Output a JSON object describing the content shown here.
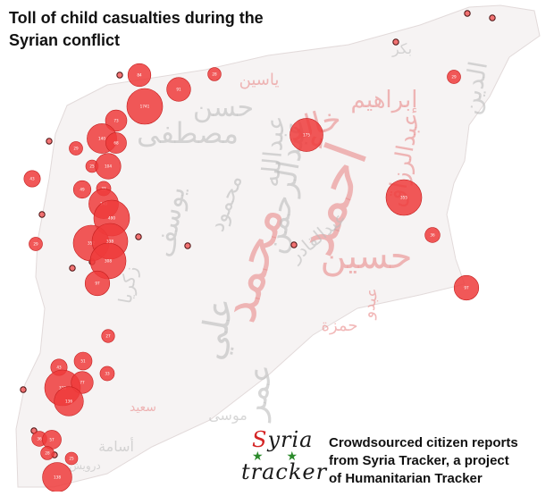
{
  "title_lines": [
    "Toll of child casualties during the",
    "Syrian conflict"
  ],
  "logo": {
    "word_top_first": "S",
    "word_top_rest": "yria",
    "word_bottom": "tracker",
    "stars": "★★"
  },
  "credit_lines": [
    "Crowdsourced citizen reports",
    "from Syria Tracker, a project",
    "of Humanitarian Tracker"
  ],
  "colors": {
    "bubble": "#ef3b3b",
    "bubble_edge": "#c41f1f",
    "cloud_red": "#e98a8a",
    "cloud_grey": "#bdbdbd"
  },
  "word_cloud": [
    "أحمد",
    "محمد",
    "علي",
    "حسين",
    "عبدالرحمن",
    "حسن",
    "مصطفى",
    "خالد",
    "عمر",
    "عبدالله",
    "يوسف",
    "إبراهيم",
    "عبدالرزاق",
    "الدين",
    "موسى",
    "حمزة",
    "زكريا",
    "عبدو",
    "سعيد",
    "ياسين",
    "محمود",
    "بكر",
    "أسامة",
    "درويش",
    "عبدالقادر"
  ],
  "bubbles": [
    {
      "label": "",
      "value": 0
    },
    {
      "label": "",
      "value": 0
    },
    {
      "label": "",
      "value": 0
    },
    {
      "label": "",
      "value": 0
    },
    {
      "label": "",
      "value": 0
    },
    {
      "label": "",
      "value": 0
    },
    {
      "label": "",
      "value": 0
    },
    {
      "label": "",
      "value": 0
    },
    {
      "label": "",
      "value": 0
    },
    {
      "label": "",
      "value": 0
    },
    {
      "label": "",
      "value": 0
    },
    {
      "label": "",
      "value": 0
    },
    {
      "label": "",
      "value": 0
    },
    {
      "label": "",
      "value": 0
    },
    {
      "label": "84",
      "value": 84
    },
    {
      "label": "91",
      "value": 91
    },
    {
      "label": "28",
      "value": 28
    },
    {
      "label": "29",
      "value": 29
    },
    {
      "label": "1741",
      "value": 1741
    },
    {
      "label": "73",
      "value": 73
    },
    {
      "label": "140",
      "value": 140
    },
    {
      "label": "68",
      "value": 68
    },
    {
      "label": "29",
      "value": 29
    },
    {
      "label": "25",
      "value": 25
    },
    {
      "label": "104",
      "value": 104
    },
    {
      "label": "43",
      "value": 43
    },
    {
      "label": "33",
      "value": 33
    },
    {
      "label": "49",
      "value": 49
    },
    {
      "label": "140",
      "value": 140
    },
    {
      "label": "490",
      "value": 490
    },
    {
      "label": "29",
      "value": 29
    },
    {
      "label": "352",
      "value": 352
    },
    {
      "label": "338",
      "value": 338
    },
    {
      "label": "308",
      "value": 308
    },
    {
      "label": "97",
      "value": 97
    },
    {
      "label": "175",
      "value": 175
    },
    {
      "label": "355",
      "value": 355
    },
    {
      "label": "36",
      "value": 36
    },
    {
      "label": "97",
      "value": 97
    },
    {
      "label": "27",
      "value": 27
    },
    {
      "label": "43",
      "value": 43
    },
    {
      "label": "51",
      "value": 51
    },
    {
      "label": "33",
      "value": 33
    },
    {
      "label": "328",
      "value": 328
    },
    {
      "label": "77",
      "value": 77
    },
    {
      "label": "136",
      "value": 136
    },
    {
      "label": "36",
      "value": 36
    },
    {
      "label": "57",
      "value": 57
    },
    {
      "label": "138",
      "value": 138
    },
    {
      "label": "25",
      "value": 25
    },
    {
      "label": "28",
      "value": 28
    }
  ]
}
